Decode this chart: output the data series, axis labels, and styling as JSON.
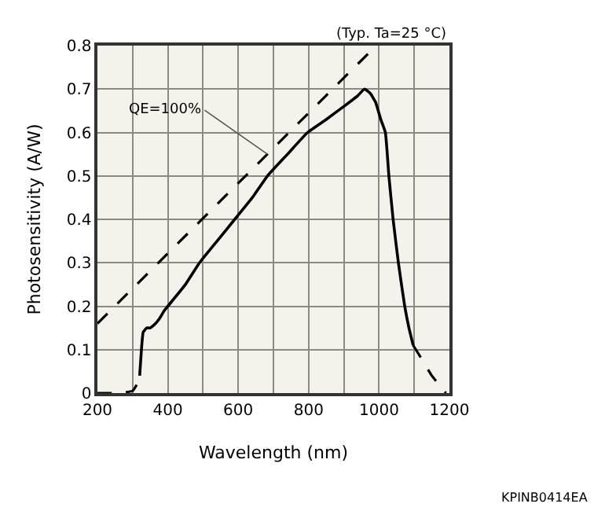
{
  "chart_data": {
    "type": "line",
    "xlabel": "Wavelength (nm)",
    "ylabel": "Photosensitivity (A/W)",
    "series": [
      {
        "color": "#000000",
        "line_style": "solid",
        "x": [
          320,
          325,
          330,
          340,
          350,
          365,
          375,
          390,
          400,
          450,
          490,
          540,
          590,
          640,
          683,
          740,
          797,
          850,
          900,
          940,
          959,
          975,
          990,
          1005,
          1018,
          1028,
          1040,
          1055,
          1073,
          1085,
          1097
        ],
        "values": [
          0.04,
          0.1,
          0.14,
          0.15,
          0.15,
          0.16,
          0.17,
          0.19,
          0.2,
          0.25,
          0.3,
          0.35,
          0.4,
          0.45,
          0.5,
          0.55,
          0.6,
          0.63,
          0.66,
          0.685,
          0.7,
          0.69,
          0.67,
          0.63,
          0.6,
          0.5,
          0.4,
          0.3,
          0.2,
          0.15,
          0.11
        ]
      },
      {
        "color": "#000000",
        "line_style": "dashed",
        "x": [
          200,
          250,
          300,
          312,
          320
        ],
        "values": [
          0,
          0,
          0.005,
          0.02,
          0.04
        ]
      },
      {
        "color": "#000000",
        "line_style": "dashed",
        "x": [
          1097,
          1120,
          1150,
          1175,
          1190
        ],
        "values": [
          0.11,
          0.08,
          0.04,
          0.015,
          0
        ]
      },
      {
        "color": "#000000",
        "line_style": "dashed",
        "x": [
          200,
          992
        ],
        "values": [
          0.16,
          0.8
        ]
      }
    ],
    "xlim": [
      200,
      1200
    ],
    "ylim": [
      0,
      0.8
    ],
    "xticks": [
      200,
      {
        "value": 300,
        "label": null
      },
      400,
      {
        "value": 500,
        "label": null
      },
      600,
      {
        "value": 700,
        "label": null
      },
      800,
      {
        "value": 900,
        "label": null
      },
      1000,
      {
        "value": 1100,
        "label": null
      },
      1200
    ],
    "yticks": [
      0,
      0.1,
      0.2,
      0.3,
      0.4,
      0.5,
      0.6,
      0.7,
      0.8
    ],
    "grid": true,
    "annotations": [
      {
        "text": "QE=100%",
        "x": 683,
        "y": 0.55
      },
      "(Typ. Ta=25 °C)",
      "KPINB0414EA"
    ]
  }
}
